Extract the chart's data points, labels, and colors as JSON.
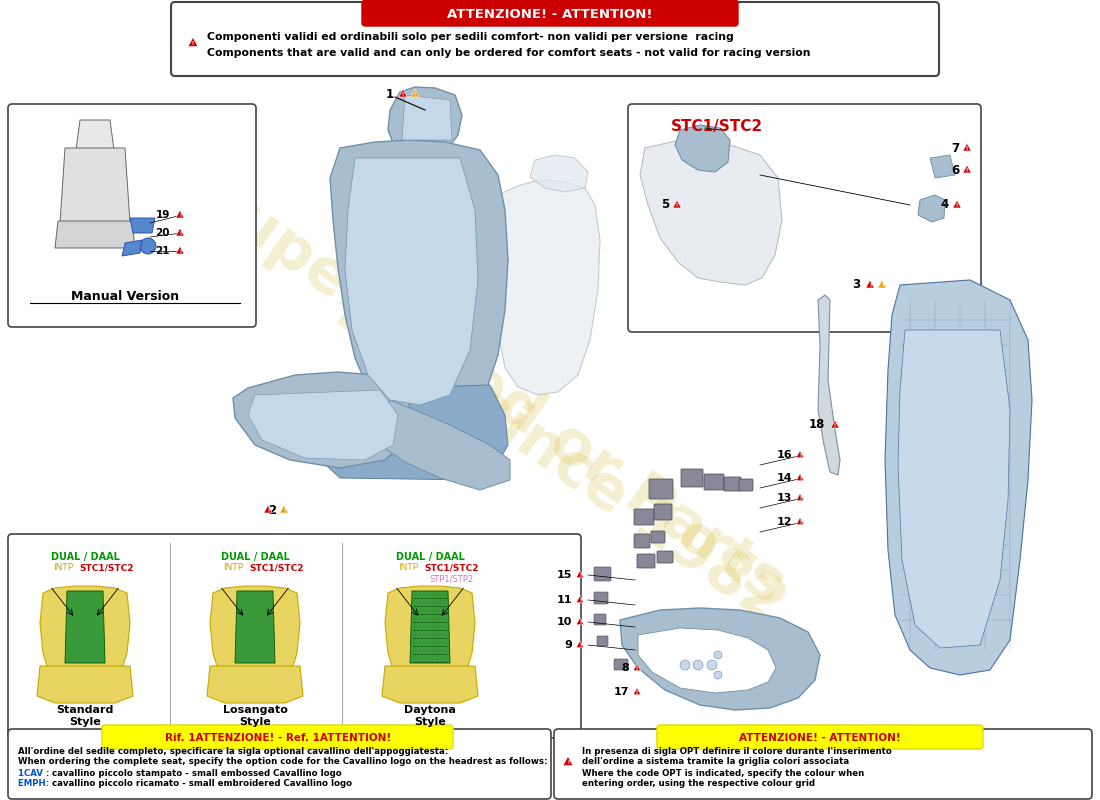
{
  "title": "ATTENZIONE! - ATTENTION!",
  "top_warning_text1": "Componenti validi ed ordinabili solo per sedili comfort- non validi per versione  racing",
  "top_warning_text2": "Components that are valid and can only be ordered for comfort seats - not valid for racing version",
  "bottom_left_title": "Rif. 1ATTENZIONE! - Ref. 1ATTENTION!",
  "bottom_left_line1": "All'ordine del sedile completo, specificare la sigla optional cavallino dell'appoggiatesta:",
  "bottom_left_line2": "When ordering the complete seat, specify the option code for the Cavallino logo on the headrest as follows:",
  "bottom_left_line3a": "1CAV : ",
  "bottom_left_line3b": "cavallino piccolo stampato - small embossed Cavallino logo",
  "bottom_left_line4a": "EMPH: ",
  "bottom_left_line4b": "cavallino piccolo ricamato - small embroidered Cavallino logo",
  "bottom_right_title": "ATTENZIONE! - ATTENTION!",
  "bottom_right_line1": "In presenza di sigla OPT definire il colore durante l'inserimento",
  "bottom_right_line2": "dell'ordine a sistema tramite la griglia colori associata",
  "bottom_right_line3": "Where the code OPT is indicated, specify the colour when",
  "bottom_right_line4": "entering order, using the respective colour grid",
  "stc_label": "STC1/STC2",
  "manual_version_label": "Manual Version",
  "style1": "Standard\nStyle",
  "style2": "Losangato\nStyle",
  "style3": "Daytona\nStyle",
  "dual_daal": "DUAL / DAAL",
  "intp": "INTP",
  "stc1stc2_label": "STC1/STC2",
  "stp1stp2": "STP1/STP2",
  "bg_color": "#ffffff",
  "warning_red": "#cc0000",
  "green_text": "#009900",
  "yellow_text": "#ccaa00",
  "red_text": "#cc0000",
  "pink_text": "#cc77cc",
  "blue_seat": "#a8bece",
  "blue_seat_light": "#c5d8e8",
  "blue_seat_dark": "#8aabca",
  "yellow_seat": "#e8d460",
  "green_seat": "#3a9a3a",
  "watermark1": "Superseded or Parts",
  "watermark2": "now since 1982",
  "wm_color": "#c8a800",
  "wm_alpha": 0.18
}
